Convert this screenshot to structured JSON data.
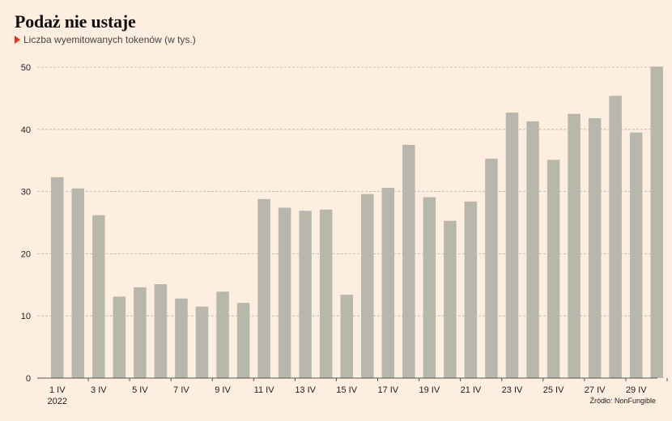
{
  "header": {
    "title": "Podaż nie ustaje",
    "subtitle": "Liczba wyemitowanych tokenów (w tys.)"
  },
  "footer": {
    "source": "Źródło: NonFungible"
  },
  "colors": {
    "background": "#fdeee0",
    "bar": "#b8b7ab",
    "grid": "#b9b2a8",
    "marker": "#e0301e"
  },
  "chart_data": {
    "type": "bar",
    "title": "Podaż nie ustaje",
    "subtitle": "Liczba wyemitowanych tokenów (w tys.)",
    "categories": [
      "1 IV",
      "2 IV",
      "3 IV",
      "4 IV",
      "5 IV",
      "6 IV",
      "7 IV",
      "8 IV",
      "9 IV",
      "10 IV",
      "11 IV",
      "12 IV",
      "13 IV",
      "14 IV",
      "15 IV",
      "16 IV",
      "17 IV",
      "18 IV",
      "19 IV",
      "20 IV",
      "21 IV",
      "22 IV",
      "23 IV",
      "24 IV",
      "25 IV",
      "26 IV",
      "27 IV",
      "28 IV",
      "29 IV",
      "30 IV"
    ],
    "values": [
      32.3,
      30.5,
      26.2,
      13.1,
      14.6,
      15.1,
      12.8,
      11.5,
      13.9,
      12.1,
      28.8,
      27.4,
      26.9,
      27.1,
      13.4,
      29.6,
      30.6,
      37.5,
      29.1,
      25.3,
      28.4,
      35.3,
      42.7,
      41.3,
      35.1,
      42.5,
      41.8,
      45.4,
      39.5,
      50.1
    ],
    "x_tick_labels": [
      "1 IV",
      "3 IV",
      "5 IV",
      "7 IV",
      "9 IV",
      "11 IV",
      "13 IV",
      "15 IV",
      "17 IV",
      "19 IV",
      "21 IV",
      "23 IV",
      "25 IV",
      "27 IV",
      "29 IV"
    ],
    "x_tick_sublabel": "2022",
    "y_ticks": [
      0,
      10,
      20,
      30,
      40,
      50
    ],
    "ylim": [
      0,
      50
    ],
    "grid": true,
    "xlabel": "",
    "ylabel": ""
  }
}
